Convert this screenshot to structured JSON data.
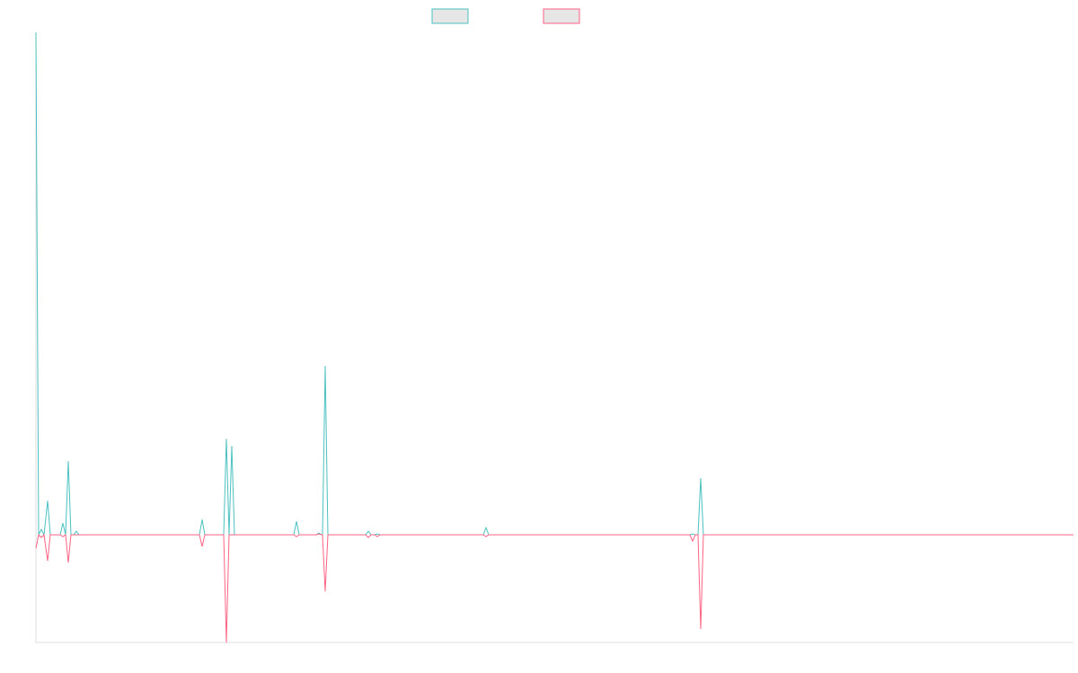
{
  "chart_data": {
    "type": "line",
    "x": [
      0,
      3,
      6,
      9,
      13,
      16,
      27,
      30,
      33,
      36,
      39,
      42,
      45,
      48,
      182,
      185,
      188,
      209,
      212,
      215,
      218,
      221,
      287,
      290,
      293,
      312,
      315,
      318,
      319,
      322,
      325,
      367,
      370,
      373,
      377,
      380,
      383,
      498,
      501,
      504,
      728,
      731,
      734,
      737,
      740,
      743,
      1155
    ],
    "series": [
      {
        "color": "#4bc0c0",
        "values": [
          56,
          0,
          0.6,
          0,
          3.8,
          0,
          0,
          1.3,
          0,
          8.2,
          0,
          0,
          0.4,
          0,
          0,
          1.7,
          0,
          0,
          10.7,
          0,
          9.9,
          0,
          0,
          1.5,
          0,
          0,
          0.2,
          0,
          0,
          18.8,
          0,
          0,
          0.4,
          0,
          0,
          0.1,
          0,
          0,
          0.8,
          0,
          0,
          0.1,
          0,
          0,
          6.3,
          0,
          0
        ]
      },
      {
        "color": "#ff6384",
        "values": [
          -1.5,
          0,
          -0.3,
          0,
          -2.9,
          0,
          0,
          -0.2,
          0,
          -3.1,
          0,
          0,
          0,
          0,
          0,
          -1.3,
          0,
          0,
          -12,
          0,
          0,
          0,
          0,
          -0.2,
          0,
          0,
          0.1,
          0,
          0,
          -6.3,
          0,
          0,
          -0.3,
          0,
          0,
          -0.2,
          0,
          0,
          -0.2,
          0,
          0,
          -0.7,
          0,
          0,
          -10.5,
          0,
          0
        ]
      }
    ],
    "xlim": [
      0,
      1155
    ],
    "ylim": [
      -12,
      56
    ]
  }
}
